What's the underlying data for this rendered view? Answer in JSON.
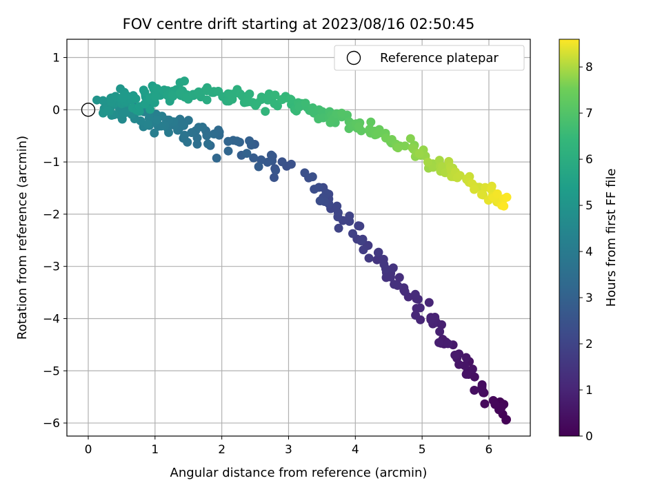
{
  "chart_data": {
    "type": "scatter",
    "title": "FOV centre drift starting at 2023/08/16 02:50:45",
    "xlabel": "Angular distance from reference (arcmin)",
    "ylabel": "Rotation from reference (arcmin)",
    "xlim": [
      -0.32,
      6.62
    ],
    "ylim": [
      -6.25,
      1.35
    ],
    "xticks": [
      0,
      1,
      2,
      3,
      4,
      5,
      6
    ],
    "yticks": [
      1,
      0,
      -1,
      -2,
      -3,
      -4,
      -5,
      -6
    ],
    "grid": true,
    "legend": {
      "position": "top-right",
      "entries": [
        "Reference platepar"
      ]
    },
    "reference_point": {
      "x": 0,
      "y": 0,
      "label": "Reference platepar"
    },
    "colorbar": {
      "label": "Hours from first FF file",
      "colormap": "viridis",
      "range": [
        0,
        8.6
      ],
      "ticks": [
        0,
        1,
        2,
        3,
        4,
        5,
        6,
        7,
        8
      ]
    },
    "segments": [
      {
        "from": [
          6.3,
          -5.9
        ],
        "to": [
          3.3,
          -1.3
        ],
        "hours": [
          0.0,
          2.4
        ],
        "count": 100,
        "spread": 0.14
      },
      {
        "from": [
          3.0,
          -1.1
        ],
        "to": [
          1.6,
          -0.4
        ],
        "hours": [
          2.4,
          3.6
        ],
        "count": 35,
        "spread": 0.2
      },
      {
        "from": [
          1.6,
          -0.4
        ],
        "to": [
          0.2,
          0.1
        ],
        "hours": [
          3.6,
          5.0
        ],
        "count": 70,
        "spread": 0.15
      },
      {
        "from": [
          0.3,
          0.15
        ],
        "to": [
          1.5,
          0.35
        ],
        "hours": [
          5.0,
          5.8
        ],
        "count": 60,
        "spread": 0.16
      },
      {
        "from": [
          1.5,
          0.35
        ],
        "to": [
          3.3,
          0.05
        ],
        "hours": [
          5.8,
          6.6
        ],
        "count": 60,
        "spread": 0.13
      },
      {
        "from": [
          3.3,
          0.0
        ],
        "to": [
          4.3,
          -0.4
        ],
        "hours": [
          6.6,
          7.4
        ],
        "count": 35,
        "spread": 0.1
      },
      {
        "from": [
          4.3,
          -0.4
        ],
        "to": [
          6.3,
          -1.8
        ],
        "hours": [
          7.4,
          8.6
        ],
        "count": 70,
        "spread": 0.12
      }
    ]
  }
}
